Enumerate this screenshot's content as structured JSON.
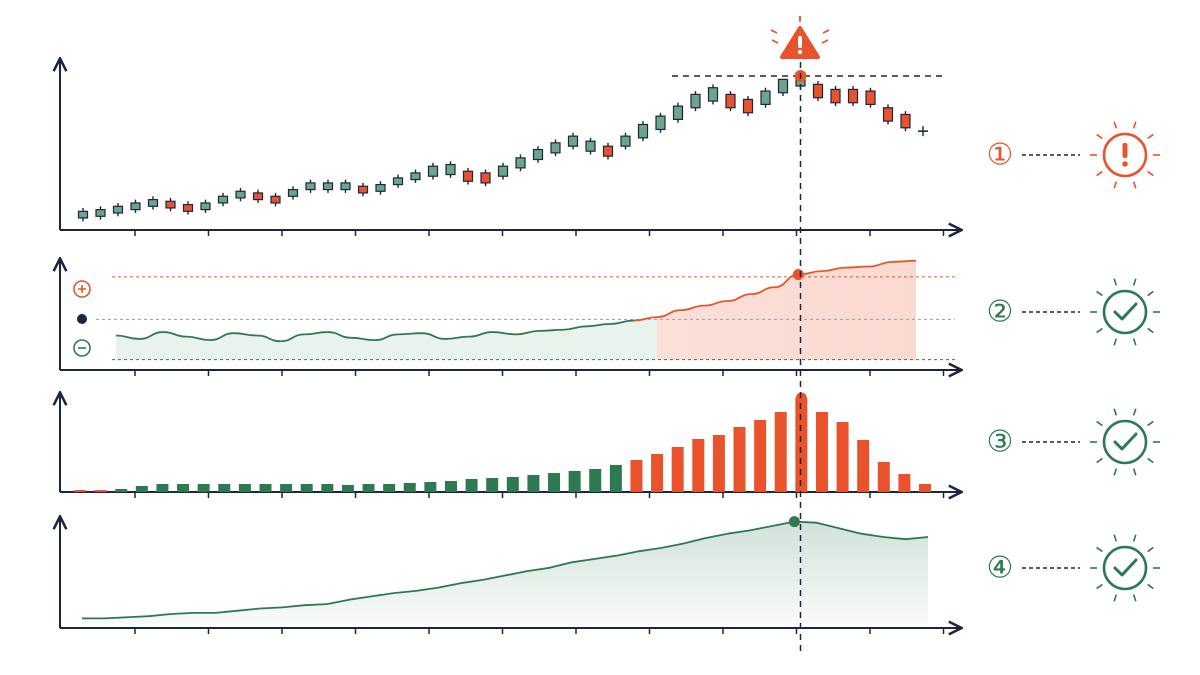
{
  "chart_data": [
    {
      "type": "candlestick",
      "label": "①",
      "status": "warning",
      "color_up": "#6aa58c",
      "color_down": "#e8532b",
      "ylim": [
        0,
        100
      ],
      "open": [
        6,
        7,
        9,
        11,
        13,
        16,
        14,
        11,
        15,
        18,
        21,
        19,
        19,
        23,
        23,
        23,
        25,
        22,
        26,
        29,
        31,
        32,
        34,
        33,
        31,
        36,
        41,
        45,
        49,
        46,
        49,
        49,
        54,
        59,
        65,
        72,
        76,
        80,
        77,
        74,
        81,
        85,
        86,
        83,
        83,
        82,
        72,
        68,
        58
      ],
      "close": [
        10,
        11,
        13,
        15,
        17,
        12,
        10,
        15,
        19,
        22,
        17,
        15,
        23,
        27,
        27,
        27,
        21,
        26,
        30,
        33,
        37,
        38,
        28,
        27,
        37,
        42,
        47,
        51,
        55,
        52,
        43,
        55,
        62,
        67,
        73,
        80,
        84,
        72,
        69,
        82,
        89,
        89,
        78,
        75,
        75,
        74,
        64,
        60,
        58
      ],
      "high": [
        12,
        13,
        15,
        17,
        19,
        18,
        16,
        17,
        21,
        24,
        23,
        21,
        25,
        29,
        29,
        29,
        27,
        28,
        32,
        35,
        39,
        40,
        36,
        35,
        39,
        44,
        49,
        53,
        57,
        54,
        51,
        57,
        64,
        69,
        75,
        82,
        86,
        82,
        79,
        84,
        88,
        91,
        88,
        85,
        85,
        84,
        74,
        70,
        61
      ],
      "low": [
        4,
        5,
        7,
        9,
        11,
        10,
        8,
        9,
        13,
        16,
        15,
        13,
        17,
        21,
        21,
        21,
        19,
        20,
        24,
        27,
        29,
        30,
        26,
        25,
        29,
        34,
        39,
        43,
        47,
        44,
        41,
        47,
        52,
        57,
        63,
        70,
        74,
        70,
        67,
        72,
        79,
        83,
        76,
        73,
        73,
        72,
        62,
        58,
        55
      ]
    },
    {
      "type": "line",
      "label": "②",
      "status": "ok",
      "color_above": "#e8532b",
      "color_below": "#2d7a52",
      "ylim": [
        0,
        100
      ],
      "thresholds": [
        81,
        44,
        9
      ],
      "values": [
        30,
        27,
        33,
        29,
        26,
        32,
        30,
        25,
        31,
        33,
        28,
        26,
        31,
        32,
        27,
        29,
        33,
        31,
        34,
        35,
        38,
        40,
        43,
        46,
        52,
        56,
        60,
        66,
        72,
        83,
        86,
        89,
        90,
        94,
        95
      ]
    },
    {
      "type": "bar",
      "label": "③",
      "status": "ok",
      "ylim": [
        0,
        100
      ],
      "series": [
        {
          "color": "#2d7a52",
          "values": [
            null,
            null,
            3,
            6,
            8,
            8,
            8,
            8,
            8,
            8,
            8,
            8,
            8,
            7,
            8,
            8,
            9,
            10,
            11,
            13,
            14,
            15,
            17,
            19,
            21,
            23,
            27,
            null,
            null,
            null,
            null,
            null,
            null,
            null,
            null,
            null,
            null,
            null,
            null,
            null,
            null,
            null
          ]
        },
        {
          "color": "#e8532b",
          "values": [
            2,
            2,
            null,
            null,
            null,
            null,
            null,
            null,
            null,
            null,
            null,
            null,
            null,
            null,
            null,
            null,
            null,
            null,
            null,
            null,
            null,
            null,
            null,
            null,
            null,
            null,
            null,
            32,
            38,
            45,
            53,
            57,
            65,
            72,
            80,
            94,
            80,
            70,
            52,
            30,
            18,
            8
          ]
        }
      ]
    },
    {
      "type": "area",
      "label": "④",
      "status": "ok",
      "color": "#2d7a52",
      "ylim": [
        0,
        100
      ],
      "values": [
        6,
        6,
        7,
        8,
        10,
        11,
        11,
        13,
        15,
        16,
        18,
        19,
        23,
        26,
        29,
        31,
        34,
        38,
        41,
        45,
        49,
        52,
        57,
        60,
        63,
        67,
        70,
        74,
        79,
        83,
        86,
        90,
        94,
        93,
        88,
        83,
        80,
        78,
        80
      ]
    }
  ]
}
